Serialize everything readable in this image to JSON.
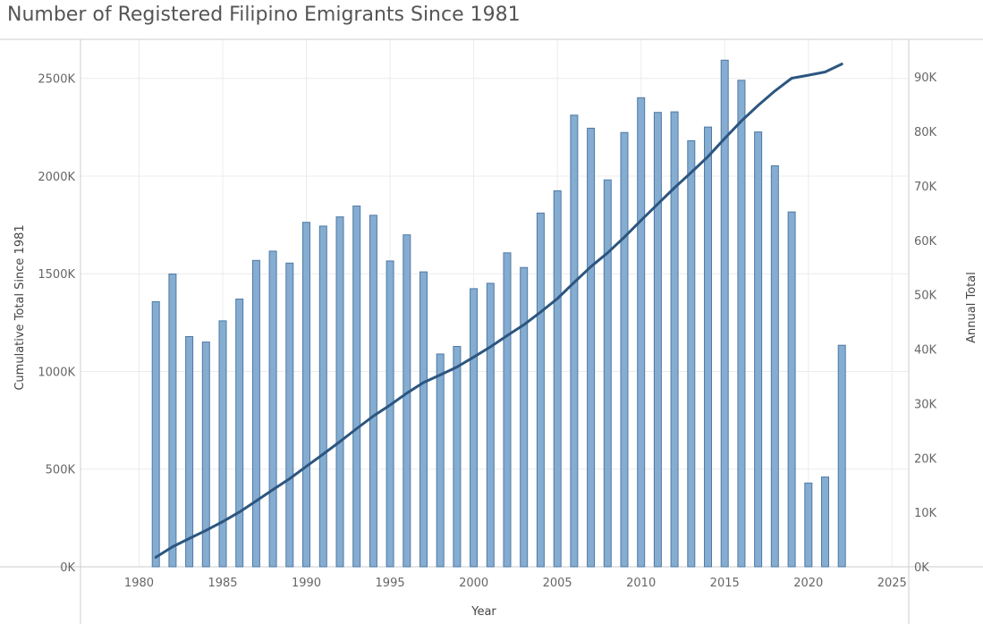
{
  "chart_data": {
    "type": "bar+line",
    "title": "Number of Registered Filipino Emigrants Since 1981",
    "xlabel": "Year",
    "ylabel_left": "Cumulative Total Since 1981",
    "ylabel_right": "Annual Total",
    "xlim": [
      1976.5,
      2026
    ],
    "x_ticks": [
      1980,
      1985,
      1990,
      1995,
      2000,
      2005,
      2010,
      2015,
      2020,
      2025
    ],
    "y_left_lim": [
      0,
      2700000
    ],
    "y_left_ticks": [
      0,
      500000,
      1000000,
      1500000,
      2000000,
      2500000
    ],
    "y_left_tick_labels": [
      "0K",
      "500K",
      "1000K",
      "1500K",
      "2000K",
      "2500K"
    ],
    "y_right_lim": [
      0,
      96923
    ],
    "y_right_ticks": [
      0,
      10000,
      20000,
      30000,
      40000,
      50000,
      60000,
      70000,
      80000,
      90000
    ],
    "y_right_tick_labels": [
      "0K",
      "10K",
      "20K",
      "30K",
      "40K",
      "50K",
      "60K",
      "70K",
      "80K",
      "90K"
    ],
    "grid": true,
    "colors": {
      "bar": "#85acd1",
      "bar_edge": "#4f7aa3",
      "line": "#2c5680",
      "grid": "#ececec",
      "axis": "#cccccc"
    },
    "series": [
      {
        "name": "Annual Total",
        "type": "bar",
        "axis": "right",
        "x": [
          1981,
          1982,
          1983,
          1984,
          1985,
          1986,
          1987,
          1988,
          1989,
          1990,
          1991,
          1992,
          1993,
          1994,
          1995,
          1996,
          1997,
          1998,
          1999,
          2000,
          2001,
          2002,
          2003,
          2004,
          2005,
          2006,
          2007,
          2008,
          2009,
          2010,
          2011,
          2012,
          2013,
          2014,
          2015,
          2016,
          2017,
          2018,
          2019,
          2020,
          2021,
          2022
        ],
        "values": [
          48700,
          53800,
          42300,
          41300,
          45200,
          49200,
          56300,
          58000,
          55800,
          63300,
          62600,
          64300,
          66300,
          64600,
          56200,
          61000,
          54200,
          39100,
          40500,
          51100,
          52100,
          57700,
          55000,
          65000,
          69100,
          83000,
          80600,
          71100,
          79800,
          86200,
          83500,
          83600,
          78300,
          80800,
          93100,
          89400,
          79900,
          73700,
          65200,
          15400,
          16500,
          40700
        ]
      },
      {
        "name": "Cumulative Total Since 1981",
        "type": "line",
        "axis": "left",
        "x": [
          1981,
          1982,
          1983,
          1984,
          1985,
          1986,
          1987,
          1988,
          1989,
          1990,
          1991,
          1992,
          1993,
          1994,
          1995,
          1996,
          1997,
          1998,
          1999,
          2000,
          2001,
          2002,
          2003,
          2004,
          2005,
          2006,
          2007,
          2008,
          2009,
          2010,
          2011,
          2012,
          2013,
          2014,
          2015,
          2016,
          2017,
          2018,
          2019,
          2020,
          2021,
          2022
        ],
        "values": [
          48700,
          102500,
          144800,
          186100,
          231300,
          280500,
          336800,
          394800,
          450600,
          513900,
          576500,
          640800,
          707100,
          771700,
          827900,
          888900,
          943100,
          982200,
          1022700,
          1073800,
          1125900,
          1183600,
          1238600,
          1303600,
          1372700,
          1455700,
          1536300,
          1607400,
          1687200,
          1773400,
          1856900,
          1940500,
          2018800,
          2099600,
          2192700,
          2282100,
          2362000,
          2435700,
          2500900,
          2516300,
          2532800,
          2573500
        ]
      }
    ]
  }
}
